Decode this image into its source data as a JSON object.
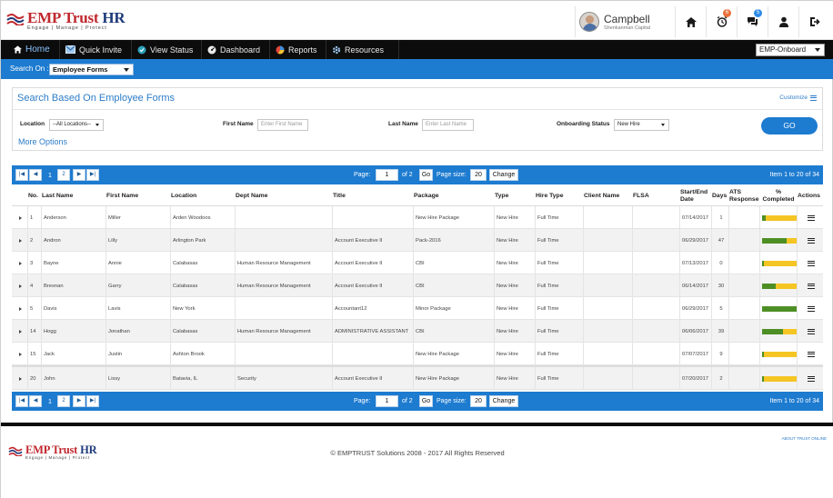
{
  "app": {
    "logo_text": "EMP Trust",
    "logo_text_hr": "HR",
    "logo_tagline": "Engage | Manage | Protect"
  },
  "header": {
    "user_name": "Campbell",
    "user_company": "Shenkanman Capital",
    "alarm_badge": "6",
    "chat_badge": "5",
    "colors": {
      "alarm_badge": "#e8703a",
      "chat_badge": "#2d8ce8"
    }
  },
  "nav": {
    "items": [
      "Home",
      "Quick Invite",
      "View Status",
      "Dashboard",
      "Reports",
      "Resources"
    ],
    "select_value": "EMP-Onboard"
  },
  "search_on": {
    "label": "Search On :",
    "value": "Employee Forms"
  },
  "search_panel": {
    "title": "Search Based On Employee Forms",
    "customize": "Customize",
    "location_label": "Location",
    "location_value": "--All Locations--",
    "first_name_label": "First Name",
    "first_name_placeholder": "Enter First Name",
    "last_name_label": "Last Name",
    "last_name_placeholder": "Enter Last Name",
    "onboarding_label": "Onboarding Status",
    "onboarding_value": "New Hire",
    "more_options": "More Options",
    "go": "GO"
  },
  "pager": {
    "first": "|◀",
    "prev": "◀",
    "pages": [
      "1",
      "2"
    ],
    "next": "▶",
    "last": "▶|",
    "page_label": "Page:",
    "page_value": "1",
    "of_label": "of 2",
    "go_label": "Go",
    "size_label": "Page size:",
    "size_value": "20",
    "change_label": "Change",
    "info": "Item 1 to 20 of 34"
  },
  "table": {
    "columns": [
      "No.",
      "Last Name",
      "First Name",
      "Location",
      "Dept Name",
      "Title",
      "Package",
      "Type",
      "Hire Type",
      "Client Name",
      "FLSA",
      "Start/End Date",
      "Days",
      "ATS Response",
      "% Completed",
      "Actions"
    ],
    "rows": [
      {
        "no": "1",
        "last": "Anderson",
        "first": "Miller",
        "location": "Arden Woodoos",
        "dept": "",
        "title": "",
        "package": "New Hire Package",
        "type": "New Hire",
        "hire_type": "Full Time",
        "client": "",
        "flsa": "",
        "date": "07/14/2017",
        "days": "1",
        "ats": "",
        "pct": 0.1
      },
      {
        "no": "2",
        "last": "Andron",
        "first": "Lilly",
        "location": "Arlington Park",
        "dept": "",
        "title": "Account Executive II",
        "package": "Pack-2016",
        "type": "New Hire",
        "hire_type": "Full Time",
        "client": "",
        "flsa": "",
        "date": "06/29/2017",
        "days": "47",
        "ats": "",
        "pct": 0.7
      },
      {
        "no": "3",
        "last": "Bayne",
        "first": "Annie",
        "location": "Calabasas",
        "dept": "Human Resource Management",
        "title": "Account Executive II",
        "package": "CBI",
        "type": "New Hire",
        "hire_type": "Full Time",
        "client": "",
        "flsa": "",
        "date": "07/13/2017",
        "days": "0",
        "ats": "",
        "pct": 0.05
      },
      {
        "no": "4",
        "last": "Bresnan",
        "first": "Garry",
        "location": "Calabasas",
        "dept": "Human Resource Management",
        "title": "Account Executive II",
        "package": "CBI",
        "type": "New Hire",
        "hire_type": "Full Time",
        "client": "",
        "flsa": "",
        "date": "06/14/2017",
        "days": "30",
        "ats": "",
        "pct": 0.4
      },
      {
        "no": "5",
        "last": "Davis",
        "first": "Lavis",
        "location": "New York",
        "dept": "",
        "title": "Accountant12",
        "package": "Minor Package",
        "type": "New Hire",
        "hire_type": "Full Time",
        "client": "",
        "flsa": "",
        "date": "06/29/2017",
        "days": "5",
        "ats": "",
        "pct": 1.0
      },
      {
        "no": "14",
        "last": "Hogg",
        "first": "Jonathan",
        "location": "Calabasas",
        "dept": "Human Resource Management",
        "title": "ADMINISTRATIVE ASSISTANT",
        "package": "CBI",
        "type": "New Hire",
        "hire_type": "Full Time",
        "client": "",
        "flsa": "",
        "date": "06/06/2017",
        "days": "39",
        "ats": "",
        "pct": 0.6
      },
      {
        "no": "15",
        "last": "Jack",
        "first": "Justin",
        "location": "Ashton Brook",
        "dept": "",
        "title": "",
        "package": "New Hire Package",
        "type": "New Hire",
        "hire_type": "Full Time",
        "client": "",
        "flsa": "",
        "date": "07/07/2017",
        "days": "9",
        "ats": "",
        "pct": 0.05
      },
      {
        "no": "20",
        "last": "John",
        "first": "Lissy",
        "location": "Batavia, IL",
        "dept": "Security",
        "title": "Account Executive II",
        "package": "New Hire Package",
        "type": "New Hire",
        "hire_type": "Full Time",
        "client": "",
        "flsa": "",
        "date": "07/20/2017",
        "days": "2",
        "ats": "",
        "pct": 0.05
      }
    ]
  },
  "footer": {
    "copyright": "© EMPTRUST Solutions 2008 - 2017 All Rights Reserved",
    "link": "ABOUT TRUST ONLINE"
  },
  "colors": {
    "accent_blue": "#1d7bd0",
    "nav_black": "#0c0c0c",
    "progress_green": "#4e8f25",
    "progress_yellow": "#f5c523",
    "logo_red": "#c0282e"
  }
}
